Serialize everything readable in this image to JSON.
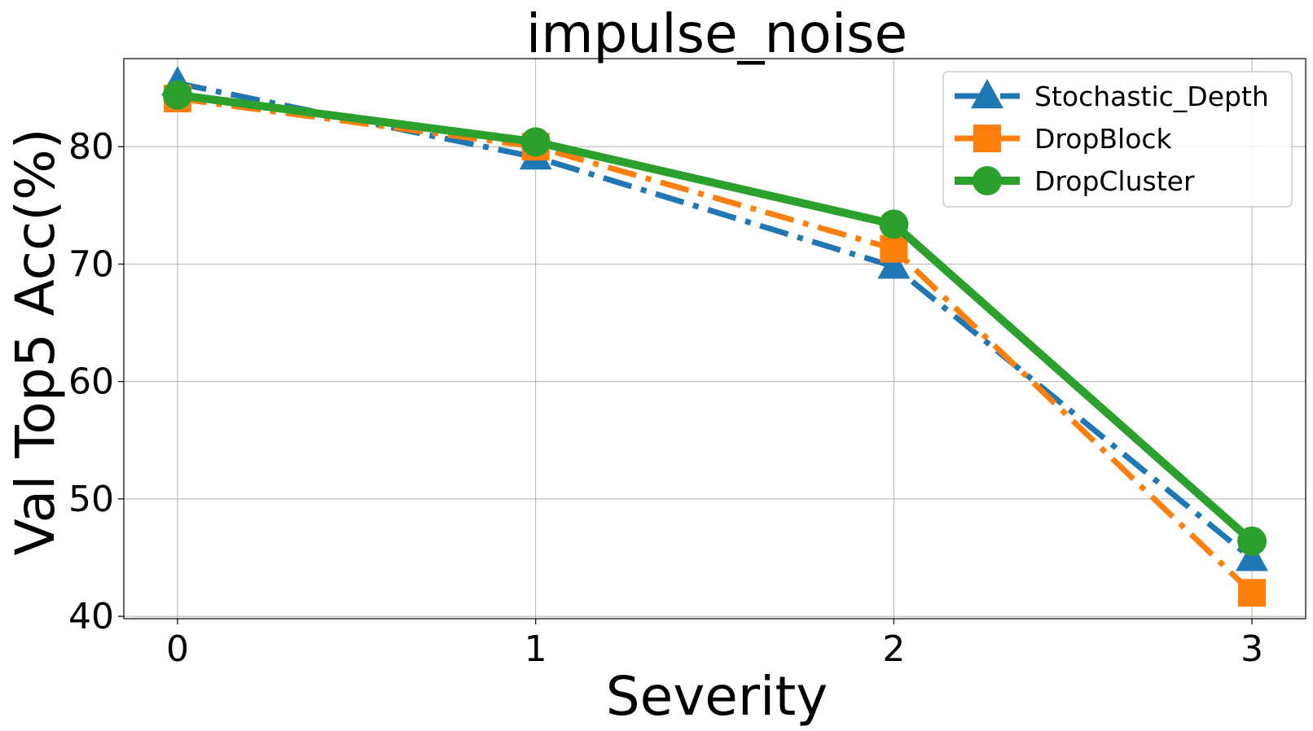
{
  "chart_data": {
    "type": "line",
    "title": "impulse_noise",
    "xlabel": "Severity",
    "ylabel": "Val Top5 Acc(%)",
    "x": [
      0,
      1,
      2,
      3
    ],
    "x_ticks": [
      "0",
      "1",
      "2",
      "3"
    ],
    "y_ticks": [
      "40",
      "50",
      "60",
      "70",
      "80"
    ],
    "xlim": [
      -0.15,
      3.15
    ],
    "ylim": [
      39.8,
      87.5
    ],
    "grid": true,
    "legend_position": "top-right",
    "series": [
      {
        "name": "Stochastic_Depth",
        "values": [
          85.4,
          79.1,
          69.8,
          44.9
        ],
        "color": "#1f77b4",
        "marker": "triangle",
        "linestyle": "dash-dot"
      },
      {
        "name": "DropBlock",
        "values": [
          84.1,
          80.0,
          71.3,
          42.0
        ],
        "color": "#ff7f0e",
        "marker": "square",
        "linestyle": "dash-dot"
      },
      {
        "name": "DropCluster",
        "values": [
          84.4,
          80.4,
          73.4,
          46.4
        ],
        "color": "#2ca02c",
        "marker": "circle",
        "linestyle": "solid"
      }
    ]
  }
}
